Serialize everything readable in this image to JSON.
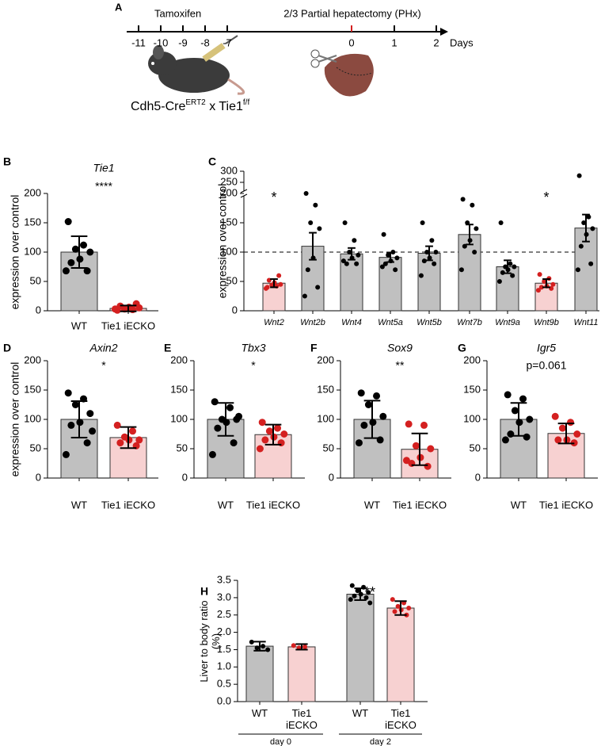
{
  "timeline": {
    "panel": "A",
    "ticks": [
      -11,
      -10,
      -9,
      -8,
      -7,
      0,
      1,
      2
    ],
    "tick_colors": [
      "#000000",
      "#000000",
      "#000000",
      "#000000",
      "#000000",
      "#d42020",
      "#000000",
      "#000000"
    ],
    "unit": "Days",
    "treatment": "Tamoxifen",
    "surgery": "2/3 Partial hepatectomy (PHx)",
    "genotype": [
      "Cdh5-Cre",
      "ERT2",
      " x Tie1",
      "f/f"
    ]
  },
  "chart_data": [
    {
      "type": "bar",
      "panel": "B",
      "title": "Tie1",
      "annotation": "****",
      "ylabel": "expression over control",
      "categories": [
        "WT",
        "Tie1 iECKO"
      ],
      "values": [
        100,
        4
      ],
      "errors": [
        27,
        5
      ],
      "points": [
        [
          152,
          112,
          105,
          100,
          88,
          82,
          68,
          68
        ],
        [
          1,
          2,
          3,
          5,
          6,
          8,
          12,
          3
        ]
      ],
      "colors": [
        "#c0c0c0",
        "#f7d1d1"
      ],
      "point_colors": [
        "#000000",
        "#d42020"
      ],
      "ylim": [
        0,
        200
      ],
      "yticks": [
        0,
        50,
        100,
        150,
        200
      ]
    },
    {
      "type": "bar",
      "panel": "C",
      "ylabel": "expression over control",
      "categories": [
        "Wnt2",
        "Wnt2b",
        "Wnt4",
        "Wnt5a",
        "Wnt5b",
        "Wnt7b",
        "Wnt9a",
        "Wnt9b",
        "Wnt11"
      ],
      "values": [
        47,
        110,
        97,
        91,
        98,
        130,
        75,
        47,
        141
      ],
      "errors": [
        7,
        23,
        10,
        8,
        12,
        17,
        11,
        7,
        23
      ],
      "points": [
        [
          40,
          42,
          44,
          45,
          48,
          52,
          60,
          38
        ],
        [
          200,
          180,
          150,
          140,
          90,
          70,
          40,
          25
        ],
        [
          150,
          120,
          100,
          95,
          90,
          80,
          80,
          85
        ],
        [
          130,
          100,
          95,
          90,
          85,
          80,
          70,
          75
        ],
        [
          150,
          120,
          100,
          100,
          90,
          85,
          80,
          60
        ],
        [
          190,
          180,
          150,
          140,
          120,
          110,
          100,
          70
        ],
        [
          150,
          80,
          75,
          75,
          70,
          65,
          60,
          50
        ],
        [
          62,
          55,
          50,
          45,
          42,
          40,
          38,
          35
        ],
        [
          280,
          160,
          150,
          140,
          130,
          110,
          80,
          70
        ]
      ],
      "colors": [
        "#f7d1d1",
        "#c0c0c0",
        "#c0c0c0",
        "#c0c0c0",
        "#c0c0c0",
        "#c0c0c0",
        "#c0c0c0",
        "#f7d1d1",
        "#c0c0c0"
      ],
      "point_colors": [
        "#d42020",
        "#000000",
        "#000000",
        "#000000",
        "#000000",
        "#000000",
        "#000000",
        "#d42020",
        "#000000"
      ],
      "annotations": [
        "*",
        null,
        null,
        null,
        null,
        null,
        null,
        "*",
        null
      ],
      "annotation_color": "#d42020",
      "reference_line": 100,
      "ybreak": 200,
      "ylim": [
        0,
        300
      ],
      "yticks": [
        0,
        50,
        100,
        150,
        200,
        250,
        300
      ]
    },
    {
      "type": "bar",
      "panel": "D",
      "title": "Axin2",
      "annotation": "*",
      "ylabel": "expression over control",
      "categories": [
        "WT",
        "Tie1 iECKO"
      ],
      "values": [
        100,
        69
      ],
      "errors": [
        31,
        18
      ],
      "points": [
        [
          145,
          135,
          125,
          110,
          95,
          90,
          60,
          40,
          80
        ],
        [
          90,
          80,
          70,
          65,
          65,
          60,
          55
        ]
      ],
      "colors": [
        "#c0c0c0",
        "#f7d1d1"
      ],
      "point_colors": [
        "#000000",
        "#d42020"
      ],
      "ylim": [
        0,
        200
      ],
      "yticks": [
        0,
        50,
        100,
        150,
        200
      ]
    },
    {
      "type": "bar",
      "panel": "E",
      "title": "Tbx3",
      "annotation": "*",
      "categories": [
        "WT",
        "Tie1 iECKO"
      ],
      "values": [
        100,
        74
      ],
      "errors": [
        28,
        17
      ],
      "points": [
        [
          130,
          120,
          100,
          100,
          95,
          85,
          60,
          40,
          105
        ],
        [
          95,
          85,
          80,
          75,
          70,
          65,
          60,
          50
        ]
      ],
      "colors": [
        "#c0c0c0",
        "#f7d1d1"
      ],
      "point_colors": [
        "#000000",
        "#d42020"
      ],
      "ylim": [
        0,
        200
      ],
      "yticks": [
        0,
        50,
        100,
        150,
        200
      ]
    },
    {
      "type": "bar",
      "panel": "F",
      "title": "Sox9",
      "annotation": "**",
      "categories": [
        "WT",
        "Tie1 iECKO"
      ],
      "values": [
        100,
        49
      ],
      "errors": [
        32,
        27
      ],
      "points": [
        [
          145,
          140,
          125,
          105,
          95,
          90,
          65,
          60
        ],
        [
          92,
          90,
          55,
          50,
          35,
          25,
          20,
          30
        ]
      ],
      "colors": [
        "#c0c0c0",
        "#f7d1d1"
      ],
      "point_colors": [
        "#000000",
        "#d42020"
      ],
      "ylim": [
        0,
        200
      ],
      "yticks": [
        0,
        50,
        100,
        150,
        200
      ]
    },
    {
      "type": "bar",
      "panel": "G",
      "title": "Igr5",
      "annotation": "p=0.061",
      "categories": [
        "WT",
        "Tie1 iECKO"
      ],
      "values": [
        100,
        76
      ],
      "errors": [
        28,
        17
      ],
      "points": [
        [
          142,
          135,
          115,
          100,
          95,
          75,
          70,
          65
        ],
        [
          105,
          95,
          85,
          75,
          65,
          65,
          60
        ]
      ],
      "colors": [
        "#c0c0c0",
        "#f7d1d1"
      ],
      "point_colors": [
        "#000000",
        "#d42020"
      ],
      "ylim": [
        0,
        200
      ],
      "yticks": [
        0,
        50,
        100,
        150,
        200
      ]
    },
    {
      "type": "bar",
      "panel": "H",
      "ylabel": "Liver to body ratio (%)",
      "categories": [
        "WT",
        "Tie1 iECKO",
        "WT",
        "Tie1 iECKO"
      ],
      "groups": [
        "day 0",
        "day 2"
      ],
      "values": [
        1.6,
        1.58,
        3.1,
        2.7
      ],
      "errors": [
        0.13,
        0.08,
        0.17,
        0.2
      ],
      "points": [
        [
          1.72,
          1.6,
          1.55,
          1.5
        ],
        [
          1.62,
          1.58,
          1.55
        ],
        [
          3.35,
          3.3,
          3.2,
          3.15,
          3.1,
          3.05,
          3.0,
          2.95,
          2.85
        ],
        [
          2.95,
          2.85,
          2.75,
          2.7,
          2.65,
          2.6,
          2.5
        ]
      ],
      "colors": [
        "#c0c0c0",
        "#f7d1d1",
        "#c0c0c0",
        "#f7d1d1"
      ],
      "point_colors": [
        "#000000",
        "#d42020",
        "#000000",
        "#d42020"
      ],
      "annotations": [
        null,
        null,
        "**",
        null
      ],
      "ylim": [
        0,
        3.5
      ],
      "yticks": [
        {
          "value": 0,
          "label": "0.0"
        },
        0.5,
        {
          "value": 1,
          "label": "1.0"
        },
        1.5,
        {
          "value": 2,
          "label": "2.0"
        },
        2.5,
        {
          "value": 3,
          "label": "3.0"
        },
        3.5
      ]
    }
  ]
}
